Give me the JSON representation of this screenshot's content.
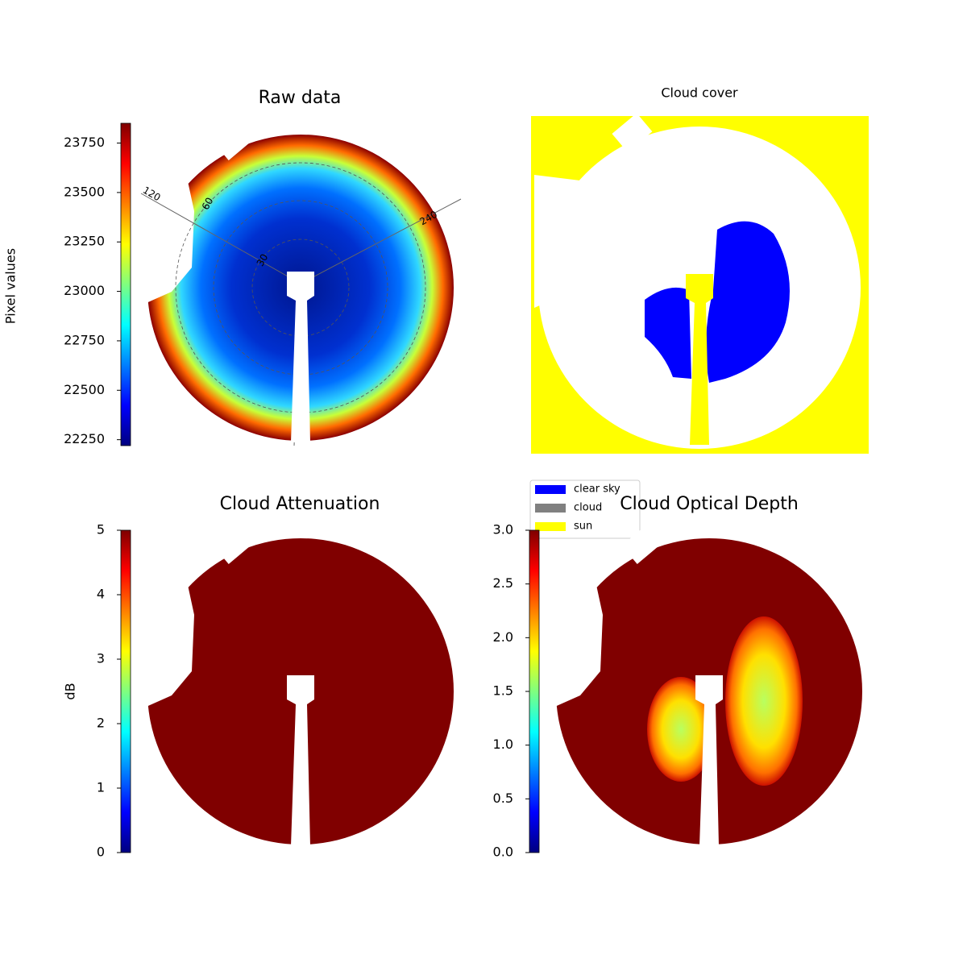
{
  "chart_data": [
    {
      "type": "image",
      "title": "Raw data",
      "colormap": "jet",
      "colorbar": {
        "label": "Pixel values",
        "lim": [
          22220,
          23850
        ],
        "ticks": [
          22250,
          22500,
          22750,
          23000,
          23250,
          23500,
          23750
        ]
      },
      "annotations": [
        "120",
        "60",
        "30",
        "240"
      ]
    },
    {
      "type": "image",
      "title": "Cloud cover",
      "series": [
        {
          "name": "clear sky",
          "color": "#0000ff"
        },
        {
          "name": "cloud",
          "color": "#808080"
        },
        {
          "name": "sun",
          "color": "#ffff00"
        }
      ]
    },
    {
      "type": "image",
      "title": "Cloud Attenuation",
      "colormap": "jet",
      "colorbar": {
        "label": "dB",
        "lim": [
          0,
          5
        ],
        "ticks": [
          0,
          1,
          2,
          3,
          4,
          5
        ]
      }
    },
    {
      "type": "image",
      "title": "Cloud Optical Depth",
      "colormap": "jet",
      "colorbar": {
        "lim": [
          0,
          3
        ],
        "ticks": [
          {
            "value": 0,
            "label": "0.0"
          },
          0.5,
          {
            "value": 1,
            "label": "1.0"
          },
          1.5,
          {
            "value": 2,
            "label": "2.0"
          },
          2.5,
          {
            "value": 3,
            "label": "3.0"
          }
        ]
      }
    }
  ]
}
